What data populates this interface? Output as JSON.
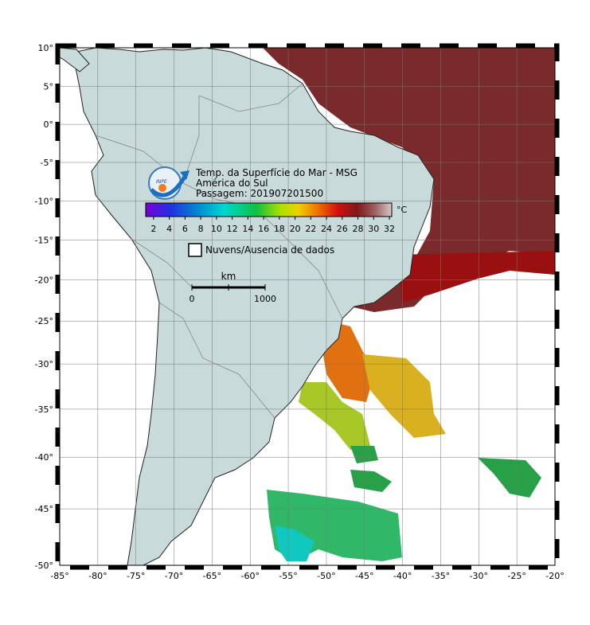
{
  "map": {
    "title_lines": [
      "Temp. da Superfície do Mar - MSG",
      "América do Sul",
      "Passagem: 201907201500"
    ],
    "colorbar": {
      "unit": "°C",
      "limits": [
        1,
        32.3
      ],
      "ticks": [
        2,
        4,
        6,
        8,
        10,
        12,
        14,
        16,
        18,
        20,
        22,
        24,
        26,
        28,
        30,
        32
      ]
    },
    "legend": "Nuvens/Ausencia de dados",
    "scale_bar": {
      "unit": "km",
      "labels": [
        0,
        1000
      ]
    },
    "logo": "INPE",
    "grid": true,
    "lon_ticks": [
      {
        "value": -85,
        "label": "-85°"
      },
      {
        "value": -80,
        "label": "-80°"
      },
      {
        "value": -75,
        "label": "-75°"
      },
      {
        "value": -70,
        "label": "-70°"
      },
      {
        "value": -65,
        "label": "-65°"
      },
      {
        "value": -60,
        "label": "-60°"
      },
      {
        "value": -55,
        "label": "-55°"
      },
      {
        "value": -50,
        "label": "-50°"
      },
      {
        "value": -45,
        "label": "-45°"
      },
      {
        "value": -40,
        "label": "-40°"
      },
      {
        "value": -35,
        "label": "-35°"
      },
      {
        "value": -30,
        "label": "-30°"
      },
      {
        "value": -25,
        "label": "-25°"
      },
      {
        "value": -20,
        "label": "-20°"
      }
    ],
    "lat_ticks": [
      {
        "value": 10,
        "label": "10°"
      },
      {
        "value": 5,
        "label": "5°"
      },
      {
        "value": 0,
        "label": "0°"
      },
      {
        "value": -5,
        "label": "-5°"
      },
      {
        "value": -10,
        "label": "-10°"
      },
      {
        "value": -15,
        "label": "-15°"
      },
      {
        "value": -20,
        "label": "-20°"
      },
      {
        "value": -25,
        "label": "-25°"
      },
      {
        "value": -30,
        "label": "-30°"
      },
      {
        "value": -35,
        "label": "-35°"
      },
      {
        "value": -40,
        "label": "-40°"
      },
      {
        "value": -45,
        "label": "-45°"
      },
      {
        "value": -50,
        "label": "-50°"
      }
    ]
  }
}
